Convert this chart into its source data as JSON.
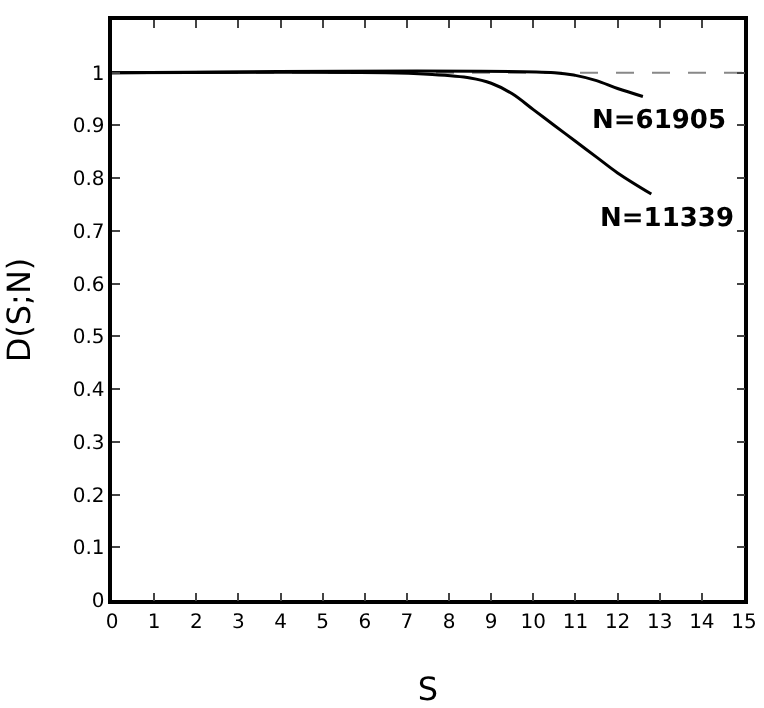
{
  "chart_data": {
    "type": "line",
    "xlabel": "S",
    "ylabel": "D(S;N)",
    "xlim": [
      0,
      15
    ],
    "ylim": [
      0,
      1.1
    ],
    "xticks": [
      0,
      1,
      2,
      3,
      4,
      5,
      6,
      7,
      8,
      9,
      10,
      11,
      12,
      13,
      14,
      15
    ],
    "yticks": [
      0,
      0.1,
      0.2,
      0.3,
      0.4,
      0.5,
      0.6,
      0.7,
      0.8,
      0.9,
      1
    ],
    "series": [
      {
        "name": "N=11339",
        "color": "#000000",
        "x": [
          0,
          6.5,
          7.5,
          8.5,
          9,
          9.5,
          10,
          10.5,
          11,
          11.5,
          12,
          12.8
        ],
        "values": [
          1,
          1,
          0.997,
          0.99,
          0.98,
          0.96,
          0.93,
          0.9,
          0.87,
          0.84,
          0.81,
          0.77
        ]
      },
      {
        "name": "N=61905",
        "color": "#000000",
        "x": [
          0,
          10.5,
          11,
          11.5,
          12,
          12.6
        ],
        "values": [
          1,
          1,
          0.995,
          0.985,
          0.97,
          0.955
        ]
      }
    ],
    "ref_lines": [
      {
        "axis": "y",
        "value": 1,
        "color": "#888888",
        "line_style": "dashed"
      }
    ],
    "grid": false,
    "line_style": "solid",
    "marker": "none"
  }
}
